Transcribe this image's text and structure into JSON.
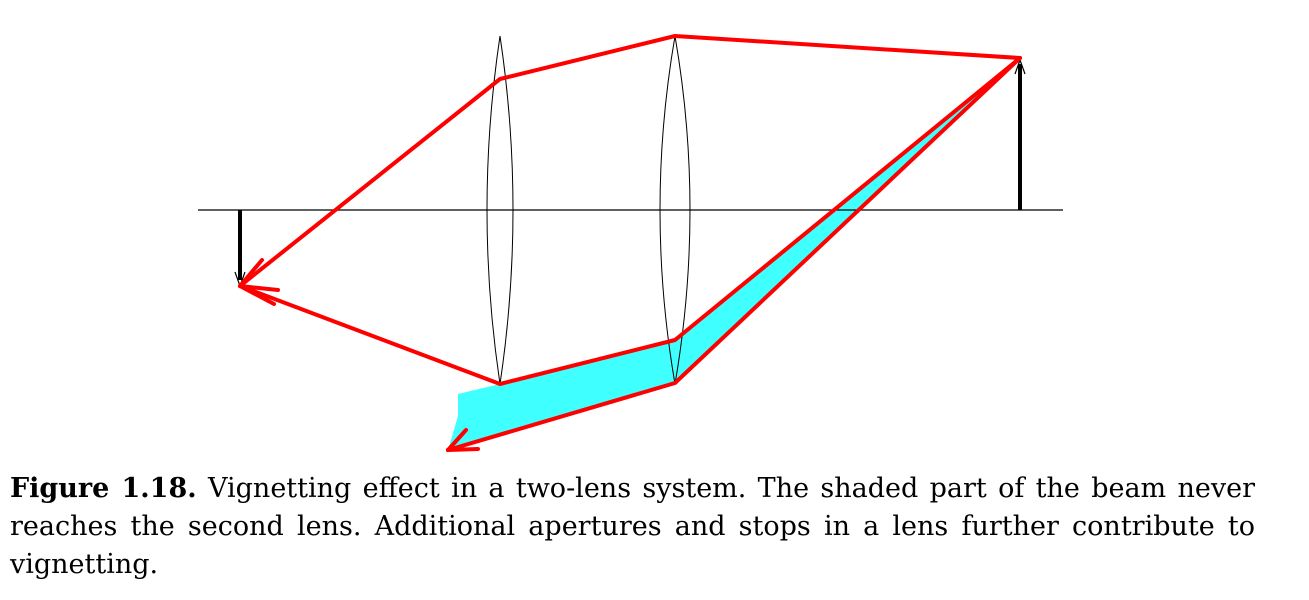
{
  "caption": {
    "label": "Figure 1.18.",
    "text": "Vignetting effect in a two-lens system. The shaded part of the beam never reaches the second lens. Additional apertures and stops in a lens further contribute to vignetting."
  },
  "colors": {
    "ray": "#ff0000",
    "vignetted_beam_fill": "#40ffff",
    "axis": "#000000",
    "lens_outline": "#000000",
    "object_arrow": "#000000",
    "image_arrow": "#000000"
  },
  "icons": {
    "object": "upward-arrow",
    "image": "downward-arrow",
    "lenses": "biconvex-lens"
  }
}
